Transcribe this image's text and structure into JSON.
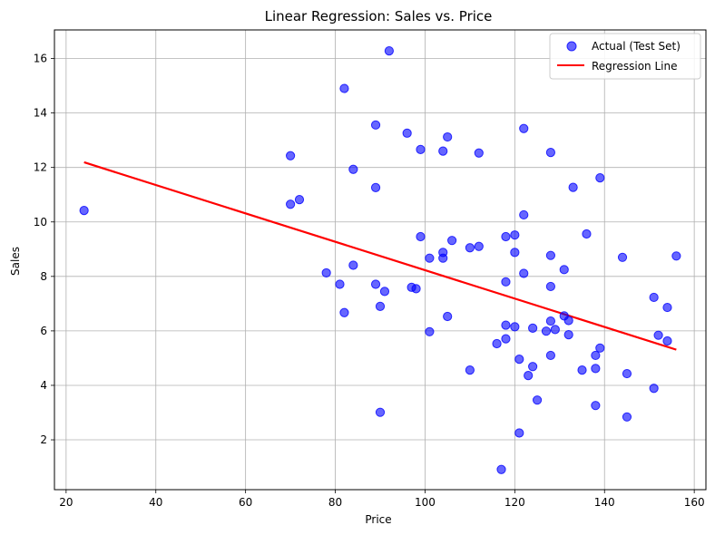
{
  "chart_data": {
    "type": "scatter",
    "title": "Linear Regression: Sales vs. Price",
    "xlabel": "Price",
    "ylabel": "Sales",
    "xlim": [
      17.4,
      162.6
    ],
    "ylim": [
      0.17,
      17.05
    ],
    "xticks": [
      20,
      40,
      60,
      80,
      100,
      120,
      140,
      160
    ],
    "yticks": [
      2,
      4,
      6,
      8,
      10,
      12,
      14,
      16
    ],
    "grid": true,
    "legend_position": "top-right",
    "series": [
      {
        "name": "Actual (Test Set)",
        "kind": "scatter",
        "color": "#0000ff",
        "points": [
          [
            24,
            10.42
          ],
          [
            70,
            12.43
          ],
          [
            70,
            10.65
          ],
          [
            72,
            10.82
          ],
          [
            78,
            8.13
          ],
          [
            81,
            7.71
          ],
          [
            82,
            14.9
          ],
          [
            82,
            6.67
          ],
          [
            84,
            11.93
          ],
          [
            84,
            8.41
          ],
          [
            89,
            13.56
          ],
          [
            89,
            11.26
          ],
          [
            89,
            7.71
          ],
          [
            90,
            6.9
          ],
          [
            90,
            3.01
          ],
          [
            91,
            7.45
          ],
          [
            92,
            16.28
          ],
          [
            96,
            13.26
          ],
          [
            97,
            7.6
          ],
          [
            98,
            7.55
          ],
          [
            99,
            12.66
          ],
          [
            99,
            9.46
          ],
          [
            101,
            8.67
          ],
          [
            101,
            5.97
          ],
          [
            104,
            12.6
          ],
          [
            104,
            8.88
          ],
          [
            104,
            8.67
          ],
          [
            105,
            13.12
          ],
          [
            105,
            6.53
          ],
          [
            106,
            9.32
          ],
          [
            110,
            9.05
          ],
          [
            110,
            4.56
          ],
          [
            112,
            12.53
          ],
          [
            112,
            9.1
          ],
          [
            116,
            5.53
          ],
          [
            117,
            0.91
          ],
          [
            118,
            9.46
          ],
          [
            118,
            7.8
          ],
          [
            118,
            6.21
          ],
          [
            118,
            5.71
          ],
          [
            120,
            9.52
          ],
          [
            120,
            8.88
          ],
          [
            120,
            6.15
          ],
          [
            121,
            4.96
          ],
          [
            121,
            2.25
          ],
          [
            122,
            13.43
          ],
          [
            122,
            10.26
          ],
          [
            122,
            8.11
          ],
          [
            123,
            4.36
          ],
          [
            124,
            6.1
          ],
          [
            124,
            4.69
          ],
          [
            125,
            3.46
          ],
          [
            127,
            5.99
          ],
          [
            128,
            12.55
          ],
          [
            128,
            8.77
          ],
          [
            128,
            7.63
          ],
          [
            128,
            6.36
          ],
          [
            128,
            5.1
          ],
          [
            129,
            6.05
          ],
          [
            131,
            8.25
          ],
          [
            131,
            6.55
          ],
          [
            132,
            6.38
          ],
          [
            132,
            5.86
          ],
          [
            133,
            11.27
          ],
          [
            135,
            4.56
          ],
          [
            136,
            9.56
          ],
          [
            138,
            5.1
          ],
          [
            138,
            4.62
          ],
          [
            138,
            3.26
          ],
          [
            139,
            11.62
          ],
          [
            139,
            5.37
          ],
          [
            144,
            8.7
          ],
          [
            145,
            4.43
          ],
          [
            145,
            2.84
          ],
          [
            151,
            7.23
          ],
          [
            151,
            3.89
          ],
          [
            152,
            5.84
          ],
          [
            154,
            6.86
          ],
          [
            154,
            5.63
          ],
          [
            156,
            8.75
          ]
        ]
      },
      {
        "name": "Regression Line",
        "kind": "line",
        "color": "#ff0000",
        "points": [
          [
            24,
            12.19
          ],
          [
            156,
            5.31
          ]
        ]
      }
    ]
  }
}
